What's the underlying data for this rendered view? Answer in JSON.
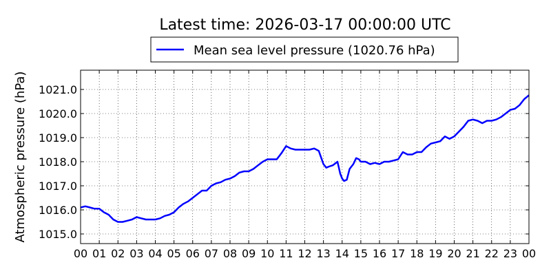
{
  "chart_data": {
    "type": "line",
    "title": "Latest time: 2026-03-17 00:00:00 UTC",
    "ylabel": "Atmospheric pressure (hPa)",
    "xlabel": "",
    "grid": true,
    "legend_position": "top-center",
    "ylim": [
      1014.6,
      1021.8
    ],
    "xlim": [
      0,
      24
    ],
    "yticks": [
      "1015.0",
      "1016.0",
      "1017.0",
      "1018.0",
      "1019.0",
      "1020.0",
      "1021.0"
    ],
    "xticks": [
      "00",
      "01",
      "02",
      "03",
      "04",
      "05",
      "06",
      "07",
      "08",
      "09",
      "10",
      "11",
      "12",
      "13",
      "14",
      "15",
      "16",
      "17",
      "18",
      "19",
      "20",
      "21",
      "22",
      "23",
      "00"
    ],
    "series": [
      {
        "name": "Mean sea level pressure (1020.76 hPa)",
        "color": "#0000ff",
        "x": [
          0.0,
          0.25,
          0.5,
          0.75,
          1.0,
          1.25,
          1.5,
          1.75,
          2.0,
          2.25,
          2.5,
          2.75,
          3.0,
          3.25,
          3.5,
          3.75,
          4.0,
          4.25,
          4.5,
          4.75,
          5.0,
          5.25,
          5.5,
          5.75,
          6.0,
          6.25,
          6.5,
          6.75,
          7.0,
          7.25,
          7.5,
          7.75,
          8.0,
          8.25,
          8.5,
          8.75,
          9.0,
          9.25,
          9.5,
          9.75,
          10.0,
          10.25,
          10.5,
          10.75,
          11.0,
          11.25,
          11.5,
          11.75,
          12.0,
          12.25,
          12.5,
          12.75,
          13.0,
          13.15,
          13.3,
          13.5,
          13.75,
          13.9,
          14.0,
          14.1,
          14.25,
          14.4,
          14.5,
          14.6,
          14.75,
          14.9,
          15.0,
          15.25,
          15.5,
          15.75,
          16.0,
          16.25,
          16.5,
          16.75,
          17.0,
          17.25,
          17.5,
          17.75,
          18.0,
          18.25,
          18.5,
          18.75,
          19.0,
          19.25,
          19.5,
          19.75,
          20.0,
          20.25,
          20.5,
          20.75,
          21.0,
          21.25,
          21.5,
          21.75,
          22.0,
          22.25,
          22.5,
          22.75,
          23.0,
          23.25,
          23.5,
          23.75,
          24.0
        ],
        "y": [
          1016.1,
          1016.15,
          1016.1,
          1016.05,
          1016.05,
          1015.9,
          1015.8,
          1015.6,
          1015.5,
          1015.5,
          1015.55,
          1015.6,
          1015.7,
          1015.65,
          1015.6,
          1015.6,
          1015.6,
          1015.65,
          1015.75,
          1015.8,
          1015.9,
          1016.1,
          1016.25,
          1016.35,
          1016.5,
          1016.65,
          1016.8,
          1016.8,
          1017.0,
          1017.1,
          1017.15,
          1017.25,
          1017.3,
          1017.4,
          1017.55,
          1017.6,
          1017.6,
          1017.7,
          1017.85,
          1018.0,
          1018.1,
          1018.1,
          1018.1,
          1018.35,
          1018.65,
          1018.55,
          1018.5,
          1018.5,
          1018.5,
          1018.5,
          1018.55,
          1018.45,
          1017.9,
          1017.75,
          1017.8,
          1017.85,
          1018.0,
          1017.5,
          1017.3,
          1017.2,
          1017.25,
          1017.7,
          1017.8,
          1017.9,
          1018.15,
          1018.1,
          1018.0,
          1018.0,
          1017.9,
          1017.95,
          1017.9,
          1018.0,
          1018.0,
          1018.05,
          1018.1,
          1018.4,
          1018.3,
          1018.3,
          1018.4,
          1018.4,
          1018.6,
          1018.75,
          1018.8,
          1018.85,
          1019.05,
          1018.95,
          1019.05,
          1019.25,
          1019.45,
          1019.7,
          1019.75,
          1019.7,
          1019.6,
          1019.7,
          1019.7,
          1019.75,
          1019.85,
          1020.0,
          1020.15,
          1020.2,
          1020.35,
          1020.6,
          1020.76
        ]
      }
    ]
  }
}
